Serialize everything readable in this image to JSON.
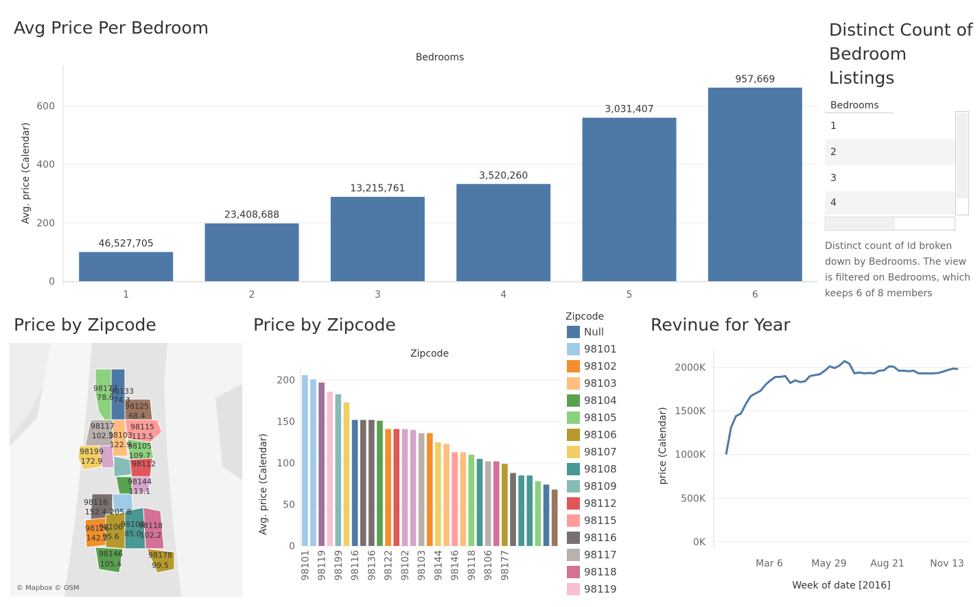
{
  "titles": {
    "avg_price_per_bedroom": "Avg Price Per Bedroom",
    "distinct_count": "Distinct Count of Bedroom Listings",
    "price_by_zipcode_map": "Price by Zipcode",
    "price_by_zipcode_bar": "Price by Zipcode",
    "revenue_for_year": "Revinue for Year"
  },
  "distinct_table": {
    "header": "Bedrooms",
    "rows": [
      "1",
      "2",
      "3",
      "4"
    ],
    "description": "Distinct count of Id broken down by Bedrooms. The view is filtered on Bedrooms, which keeps 6 of 8 members"
  },
  "map": {
    "attribution": "© Mapbox © OSM",
    "labels": [
      {
        "zip": "98177",
        "value": "78.6"
      },
      {
        "zip": "98133",
        "value": "74.3"
      },
      {
        "zip": "98125",
        "value": "68.4"
      },
      {
        "zip": "98117",
        "value": "102.3"
      },
      {
        "zip": "98103",
        "value": "122.9"
      },
      {
        "zip": "98115",
        "value": "113.5"
      },
      {
        "zip": "98105",
        "value": "109.7"
      },
      {
        "zip": "98199",
        "value": "172.9"
      },
      {
        "zip": "98112",
        "value": ""
      },
      {
        "zip": "98144",
        "value": "113.1"
      },
      {
        "zip": "98116",
        "value": "152.4"
      },
      {
        "zip": "98108",
        "value": "85.0"
      },
      {
        "zip": "98118",
        "value": "102.2"
      },
      {
        "zip": "98106",
        "value": "95.6"
      },
      {
        "zip": "98126",
        "value": "142.2"
      },
      {
        "zip": "98146",
        "value": "105.4"
      },
      {
        "zip": "98178",
        "value": "99.5"
      },
      {
        "zip": "",
        "value": "205.8"
      }
    ]
  },
  "legend": {
    "title": "Zipcode",
    "items": [
      {
        "label": "Null",
        "color": "#4e79a7"
      },
      {
        "label": "98101",
        "color": "#a0cbe8"
      },
      {
        "label": "98102",
        "color": "#f28e2b"
      },
      {
        "label": "98103",
        "color": "#ffbe7d"
      },
      {
        "label": "98104",
        "color": "#59a14f"
      },
      {
        "label": "98105",
        "color": "#8cd17d"
      },
      {
        "label": "98106",
        "color": "#b6992d"
      },
      {
        "label": "98107",
        "color": "#f1ce63"
      },
      {
        "label": "98108",
        "color": "#499894"
      },
      {
        "label": "98109",
        "color": "#86bcb6"
      },
      {
        "label": "98112",
        "color": "#e15759"
      },
      {
        "label": "98115",
        "color": "#ff9d9a"
      },
      {
        "label": "98116",
        "color": "#79706e"
      },
      {
        "label": "98117",
        "color": "#bab0ac"
      },
      {
        "label": "98118",
        "color": "#d37295"
      },
      {
        "label": "98119",
        "color": "#fabfd2"
      }
    ]
  },
  "chart_data": [
    {
      "type": "bar",
      "title": "Avg Price Per Bedroom",
      "xlabel": "Bedrooms",
      "ylabel": "Avg. price (Calendar)",
      "categories": [
        "1",
        "2",
        "3",
        "4",
        "5",
        "6"
      ],
      "values": [
        100,
        198,
        289,
        333,
        560,
        663
      ],
      "data_labels": [
        "46,527,705",
        "23,408,688",
        "13,215,761",
        "3,520,260",
        "3,031,407",
        "957,669"
      ],
      "yticks": [
        "0",
        "200",
        "400",
        "600"
      ],
      "ylim": [
        0,
        740
      ],
      "color": "#4e79a7",
      "grid": true
    },
    {
      "type": "bar",
      "title": "Price by Zipcode",
      "xlabel": "Zipcode",
      "ylabel": "Avg. price (Calendar)",
      "xticks": [
        "98101",
        "98119",
        "98199",
        "98116",
        "98136",
        "98122",
        "98102",
        "98103",
        "98144",
        "98146",
        "98118",
        "98106",
        "98177"
      ],
      "values": [
        206,
        201,
        197,
        186,
        183,
        173,
        152,
        152,
        152,
        151,
        141,
        141,
        141,
        140,
        136,
        136,
        125,
        123,
        113,
        113,
        110,
        105,
        102,
        102,
        99,
        88,
        85,
        85,
        78,
        74,
        68
      ],
      "colors": [
        "#a0cbe8",
        "#a0cbe8",
        "#a26f9b",
        "#fabfd2",
        "#86bcb6",
        "#f1ce63",
        "#4e79a7",
        "#79706e",
        "#79706e",
        "#59a14f",
        "#f28e2b",
        "#e15759",
        "#d4a6c8",
        "#d4a6c8",
        "#bab0ac",
        "#f28e2b",
        "#f1ce63",
        "#ffbe7d",
        "#ff9d9a",
        "#ffbe7d",
        "#8cd17d",
        "#499894",
        "#bab0ac",
        "#d37295",
        "#b6992d",
        "#79706e",
        "#499894",
        "#499894",
        "#8cd17d",
        "#4e79a7",
        "#9d7660"
      ],
      "yticks": [
        "0",
        "50",
        "100",
        "150",
        "200"
      ],
      "ylim": [
        0,
        215
      ],
      "grid": true
    },
    {
      "type": "line",
      "title": "Revinue for Year",
      "xlabel": "Week of date  [2016]",
      "ylabel": "price (Calendar)",
      "xticks": [
        "Mar 6",
        "May 29",
        "Aug 21",
        "Nov 13"
      ],
      "values": [
        1000,
        1310,
        1440,
        1470,
        1580,
        1670,
        1700,
        1730,
        1800,
        1850,
        1890,
        1890,
        1900,
        1820,
        1850,
        1830,
        1840,
        1900,
        1910,
        1920,
        1960,
        2010,
        1990,
        2020,
        2070,
        2040,
        1930,
        1940,
        1930,
        1935,
        1930,
        1960,
        1965,
        2010,
        2005,
        1960,
        1960,
        1955,
        1960,
        1930,
        1930,
        1930,
        1930,
        1935,
        1950,
        1970,
        1985,
        1980
      ],
      "yticks": [
        "0K",
        "500K",
        "1000K",
        "1500K",
        "2000K"
      ],
      "ylim": [
        0,
        2200
      ],
      "color": "#4e79a7",
      "grid": true
    }
  ]
}
